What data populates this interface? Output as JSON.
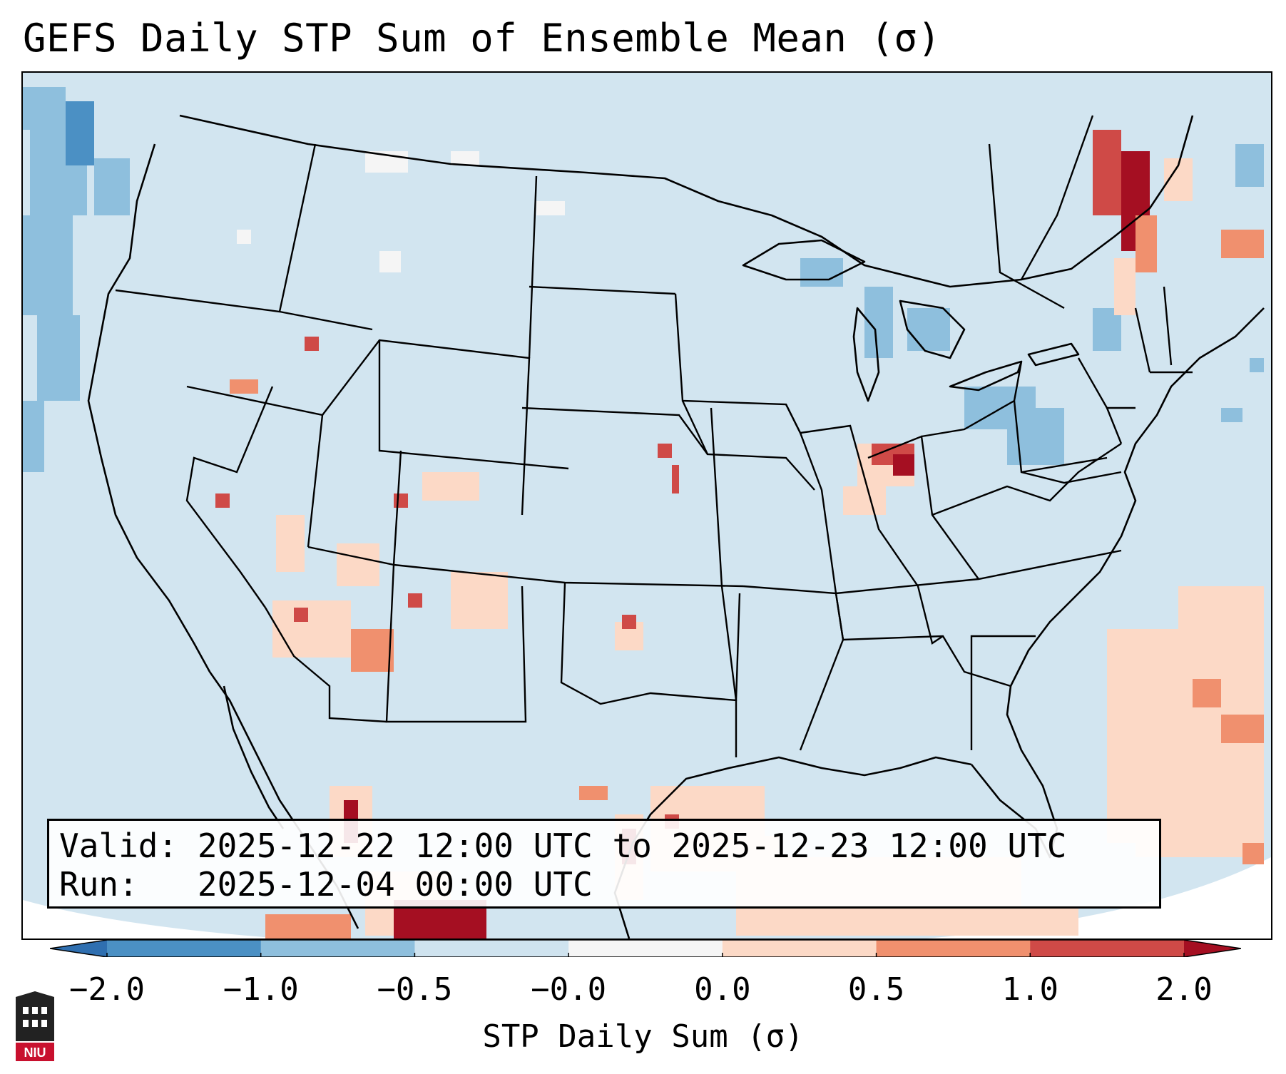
{
  "title": "GEFS Daily STP Sum of Ensemble Mean (σ)",
  "info": {
    "valid_label": "Valid:",
    "valid_value": "2025-12-22 12:00 UTC to 2025-12-23 12:00 UTC",
    "run_label": "Run:",
    "run_value": "2025-12-04 00:00 UTC"
  },
  "colorbar": {
    "label": "STP Daily Sum (σ)",
    "ticks": [
      "−2.0",
      "−1.0",
      "−0.5",
      "−0.0",
      "0.0",
      "0.5",
      "1.0",
      "2.0"
    ],
    "colors": [
      "#4b90c4",
      "#8ebfdd",
      "#cfe3ef",
      "#f5f5f5",
      "#fcd9c6",
      "#f0906e",
      "#cf4a47"
    ],
    "under_color": "#2f6fb0",
    "over_color": "#a50f22"
  },
  "map": {
    "background": "#d2e5f0",
    "ocean_outside": "#ffffff"
  },
  "logo": {
    "text": "NIU",
    "color": "#c8102e"
  }
}
